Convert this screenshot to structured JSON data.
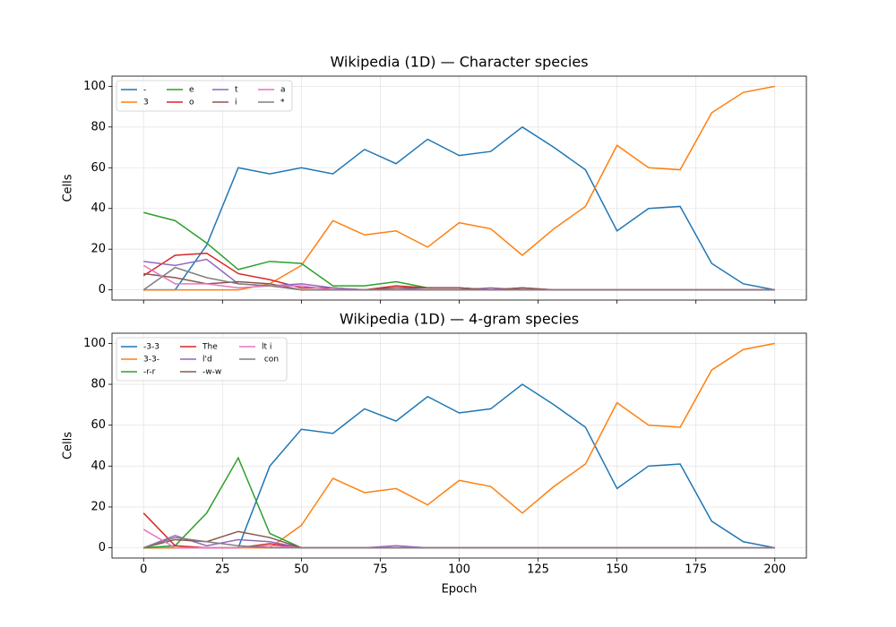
{
  "chart_data": [
    {
      "type": "line",
      "title": "Wikipedia (1D) — Character species",
      "ylabel": "Cells",
      "x": [
        0,
        10,
        20,
        30,
        40,
        50,
        60,
        70,
        80,
        90,
        100,
        110,
        120,
        130,
        140,
        150,
        160,
        170,
        180,
        190,
        200
      ],
      "xlim": [
        -10,
        210
      ],
      "ylim": [
        -5,
        105
      ],
      "xticks": [
        0,
        25,
        50,
        75,
        100,
        125,
        150,
        175,
        200
      ],
      "yticks": [
        0,
        20,
        40,
        60,
        80,
        100
      ],
      "show_xtick_labels": false,
      "grid": true,
      "legend": "upper left",
      "legend_ncol": 4,
      "series": [
        {
          "name": "-",
          "color": "#1f77b4",
          "values": [
            0,
            0,
            22,
            60,
            57,
            60,
            57,
            69,
            62,
            74,
            66,
            68,
            80,
            70,
            59,
            29,
            40,
            41,
            13,
            3,
            0
          ]
        },
        {
          "name": "3",
          "color": "#ff7f0e",
          "values": [
            0,
            0,
            0,
            0,
            3,
            12,
            34,
            27,
            29,
            21,
            33,
            30,
            17,
            30,
            41,
            71,
            60,
            59,
            87,
            97,
            100
          ]
        },
        {
          "name": "e",
          "color": "#2ca02c",
          "values": [
            38,
            34,
            23,
            10,
            14,
            13,
            2,
            2,
            4,
            1,
            1,
            0,
            0,
            0,
            0,
            0,
            0,
            0,
            0,
            0,
            0
          ]
        },
        {
          "name": "o",
          "color": "#d62728",
          "values": [
            7,
            17,
            18,
            8,
            5,
            1,
            1,
            0,
            2,
            1,
            1,
            0,
            1,
            0,
            0,
            0,
            0,
            0,
            0,
            0,
            0
          ]
        },
        {
          "name": "t",
          "color": "#9467bd",
          "values": [
            14,
            12,
            15,
            3,
            2,
            3,
            1,
            0,
            1,
            0,
            0,
            1,
            0,
            0,
            0,
            0,
            0,
            0,
            0,
            0,
            0
          ]
        },
        {
          "name": "i",
          "color": "#8c564b",
          "values": [
            8,
            6,
            3,
            4,
            3,
            0,
            0,
            0,
            1,
            1,
            1,
            0,
            1,
            0,
            0,
            0,
            0,
            0,
            0,
            0,
            0
          ]
        },
        {
          "name": "a",
          "color": "#e377c2",
          "values": [
            12,
            3,
            3,
            1,
            2,
            2,
            0,
            0,
            0,
            0,
            0,
            0,
            0,
            0,
            0,
            0,
            0,
            0,
            0,
            0,
            0
          ]
        },
        {
          "name": "*",
          "color": "#7f7f7f",
          "values": [
            0,
            11,
            6,
            3,
            2,
            0,
            0,
            0,
            0,
            0,
            0,
            0,
            0,
            0,
            0,
            0,
            0,
            0,
            0,
            0,
            0
          ]
        }
      ]
    },
    {
      "type": "line",
      "title": "Wikipedia (1D) — 4-gram species",
      "xlabel": "Epoch",
      "ylabel": "Cells",
      "x": [
        0,
        10,
        20,
        30,
        40,
        50,
        60,
        70,
        80,
        90,
        100,
        110,
        120,
        130,
        140,
        150,
        160,
        170,
        180,
        190,
        200
      ],
      "xlim": [
        -10,
        210
      ],
      "ylim": [
        -5,
        105
      ],
      "xticks": [
        0,
        25,
        50,
        75,
        100,
        125,
        150,
        175,
        200
      ],
      "yticks": [
        0,
        20,
        40,
        60,
        80,
        100
      ],
      "show_xtick_labels": true,
      "grid": true,
      "legend": "upper left",
      "legend_ncol": 3,
      "series": [
        {
          "name": "-3-3",
          "color": "#1f77b4",
          "values": [
            0,
            0,
            0,
            0,
            40,
            58,
            56,
            68,
            62,
            74,
            66,
            68,
            80,
            70,
            59,
            29,
            40,
            41,
            13,
            3,
            0
          ]
        },
        {
          "name": "3-3-",
          "color": "#ff7f0e",
          "values": [
            0,
            0,
            0,
            0,
            0,
            11,
            34,
            27,
            29,
            21,
            33,
            30,
            17,
            30,
            41,
            71,
            60,
            59,
            87,
            97,
            100
          ]
        },
        {
          "name": "-r-r",
          "color": "#2ca02c",
          "values": [
            0,
            1,
            17,
            44,
            7,
            0,
            0,
            0,
            0,
            0,
            0,
            0,
            0,
            0,
            0,
            0,
            0,
            0,
            0,
            0,
            0
          ]
        },
        {
          "name": "The",
          "color": "#d62728",
          "values": [
            17,
            1,
            0,
            0,
            2,
            0,
            0,
            0,
            0,
            0,
            0,
            0,
            0,
            0,
            0,
            0,
            0,
            0,
            0,
            0,
            0
          ]
        },
        {
          "name": "l'd",
          "color": "#9467bd",
          "values": [
            0,
            6,
            1,
            4,
            3,
            0,
            0,
            0,
            1,
            0,
            0,
            0,
            0,
            0,
            0,
            0,
            0,
            0,
            0,
            0,
            0
          ]
        },
        {
          "name": "-w-w",
          "color": "#8c564b",
          "values": [
            0,
            4,
            3,
            8,
            5,
            0,
            0,
            0,
            0,
            0,
            0,
            0,
            0,
            0,
            0,
            0,
            0,
            0,
            0,
            0,
            0
          ]
        },
        {
          "name": "lt i",
          "color": "#e377c2",
          "values": [
            9,
            0,
            0,
            0,
            1,
            0,
            0,
            0,
            0,
            0,
            0,
            0,
            0,
            0,
            0,
            0,
            0,
            0,
            0,
            0,
            0
          ]
        },
        {
          "name": " con",
          "color": "#7f7f7f",
          "values": [
            0,
            5,
            3,
            1,
            0,
            0,
            0,
            0,
            0,
            0,
            0,
            0,
            0,
            0,
            0,
            0,
            0,
            0,
            0,
            0,
            0
          ]
        }
      ]
    }
  ]
}
